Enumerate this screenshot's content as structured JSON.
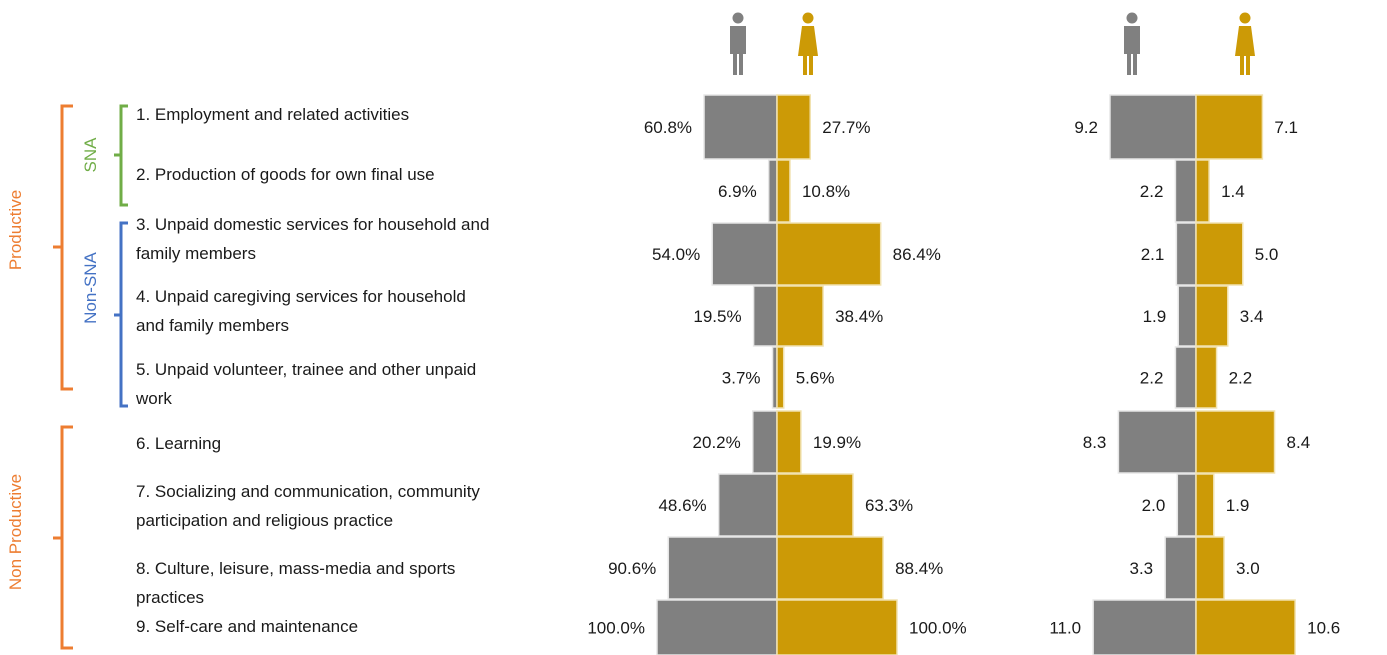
{
  "groups": {
    "productive": "Productive",
    "non_productive": "Non Productive",
    "sna": "SNA",
    "non_sna": "Non-SNA"
  },
  "categories": [
    [
      "1. Employment and related activities"
    ],
    [
      "2. Production of goods for own final use"
    ],
    [
      "3. Unpaid domestic services for household and",
      "family members"
    ],
    [
      "4. Unpaid caregiving services for household",
      "and family members"
    ],
    [
      "5. Unpaid volunteer, trainee and other unpaid",
      "work"
    ],
    [
      "6. Learning"
    ],
    [
      "7. Socializing and communication, community",
      "participation and religious practice"
    ],
    [
      "8. Culture, leisure, mass-media and sports",
      "practices"
    ],
    [
      "9. Self-care and maintenance"
    ]
  ],
  "colors": {
    "men": "#808080",
    "women": "#CC9A06",
    "productive": "#ED7D31",
    "sna": "#70AD47",
    "non_sna": "#4472C4"
  },
  "icons": [
    "male-person-icon",
    "female-person-icon"
  ],
  "chart_data": [
    {
      "type": "bar",
      "orientation": "horizontal-butterfly",
      "categories": [
        "1",
        "2",
        "3",
        "4",
        "5",
        "6",
        "7",
        "8",
        "9"
      ],
      "series": [
        {
          "values": [
            60.8,
            6.9,
            54.0,
            19.5,
            3.7,
            20.2,
            48.6,
            90.6,
            100.0
          ],
          "labels": [
            "60.8%",
            "6.9%",
            "54.0%",
            "19.5%",
            "3.7%",
            "20.2%",
            "48.6%",
            "90.6%",
            "100.0%"
          ]
        },
        {
          "values": [
            27.7,
            10.8,
            86.4,
            38.4,
            5.6,
            19.9,
            63.3,
            88.4,
            100.0
          ],
          "labels": [
            "27.7%",
            "10.8%",
            "86.4%",
            "38.4%",
            "5.6%",
            "19.9%",
            "63.3%",
            "88.4%",
            "100.0%"
          ]
        }
      ]
    },
    {
      "type": "bar",
      "orientation": "horizontal-butterfly",
      "categories": [
        "1",
        "2",
        "3",
        "4",
        "5",
        "6",
        "7",
        "8",
        "9"
      ],
      "series": [
        {
          "values": [
            9.2,
            2.2,
            2.1,
            1.9,
            2.2,
            8.3,
            2.0,
            3.3,
            11.0
          ],
          "labels": [
            "9.2",
            "2.2",
            "2.1",
            "1.9",
            "2.2",
            "8.3",
            "2.0",
            "3.3",
            "11.0"
          ]
        },
        {
          "values": [
            7.1,
            1.4,
            5.0,
            3.4,
            2.2,
            8.4,
            1.9,
            3.0,
            10.6
          ],
          "labels": [
            "7.1",
            "1.4",
            "5.0",
            "3.4",
            "2.2",
            "8.4",
            "1.9",
            "3.0",
            "10.6"
          ]
        }
      ]
    }
  ]
}
